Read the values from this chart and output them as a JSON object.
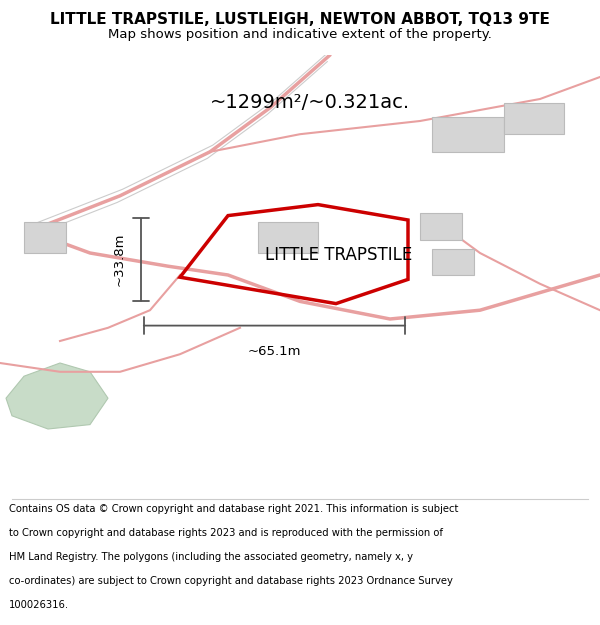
{
  "title_line1": "LITTLE TRAPSTILE, LUSTLEIGH, NEWTON ABBOT, TQ13 9TE",
  "title_line2": "Map shows position and indicative extent of the property.",
  "area_text": "~1299m²/~0.321ac.",
  "property_label": "LITTLE TRAPSTILE",
  "width_label": "~65.1m",
  "height_label": "~33.8m",
  "footer_lines": [
    "Contains OS data © Crown copyright and database right 2021. This information is subject",
    "to Crown copyright and database rights 2023 and is reproduced with the permission of",
    "HM Land Registry. The polygons (including the associated geometry, namely x, y",
    "co-ordinates) are subject to Crown copyright and database rights 2023 Ordnance Survey",
    "100026316."
  ],
  "bg_color": "#ffffff",
  "road_color": "#e8a0a0",
  "property_outline_color": "#cc0000",
  "dim_color": "#555555",
  "green_area_color": "#c8dcc8"
}
